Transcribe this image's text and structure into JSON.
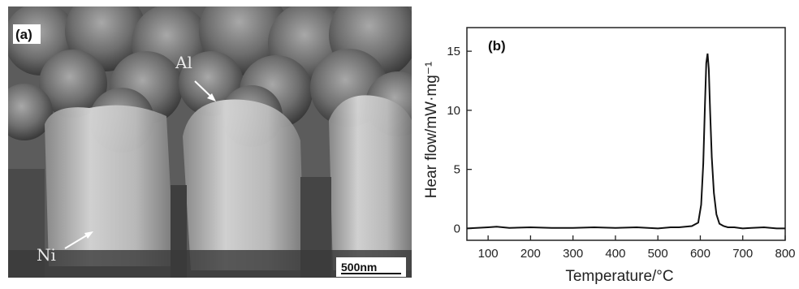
{
  "panel_a": {
    "label": "(a)",
    "annotation_al": "Al",
    "annotation_ni": "Ni",
    "scale_bar": "500nm"
  },
  "panel_b": {
    "label": "(b)"
  },
  "chart_data": {
    "type": "line",
    "title": "",
    "xlabel": "Temperature/°C",
    "ylabel": "Hear flow/mW·mg⁻¹",
    "xlim": [
      50,
      800
    ],
    "ylim": [
      -1,
      17
    ],
    "xticks": [
      100,
      200,
      300,
      400,
      500,
      600,
      700,
      800
    ],
    "yticks": [
      0,
      5,
      10,
      15
    ],
    "grid": false,
    "series": [
      {
        "x": [
          50,
          100,
          120,
          150,
          200,
          250,
          300,
          350,
          400,
          450,
          500,
          530,
          550,
          580,
          595,
          602,
          607,
          611,
          614,
          617,
          620,
          623,
          627,
          632,
          638,
          645,
          655,
          665,
          680,
          700,
          720,
          750,
          780,
          800
        ],
        "y": [
          0.0,
          0.1,
          0.15,
          0.05,
          0.1,
          0.05,
          0.05,
          0.1,
          0.05,
          0.1,
          0.0,
          0.1,
          0.1,
          0.2,
          0.5,
          2.0,
          5.5,
          10.5,
          14.0,
          14.8,
          13.5,
          10.0,
          6.0,
          3.0,
          1.2,
          0.4,
          0.2,
          0.1,
          0.1,
          0.0,
          0.05,
          0.1,
          0.0,
          0.0
        ],
        "color": "#111111"
      }
    ]
  }
}
